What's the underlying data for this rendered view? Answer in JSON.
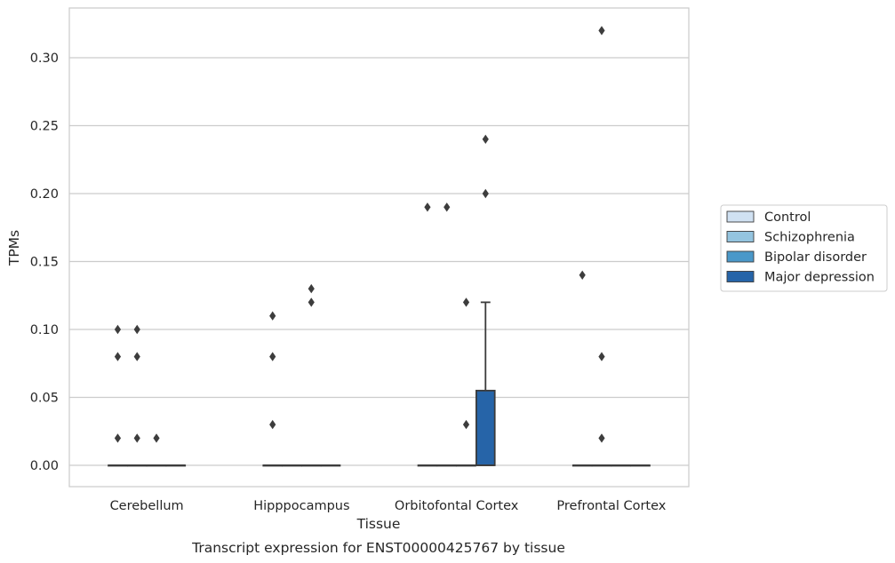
{
  "chart_data": {
    "type": "box",
    "xlabel": "Tissue",
    "ylabel": "TPMs",
    "caption": "Transcript expression for ENST00000425767 by tissue",
    "ylim": [
      -0.016,
      0.337
    ],
    "yticks": [
      0.0,
      0.05,
      0.1,
      0.15,
      0.2,
      0.25,
      0.3
    ],
    "ytick_labels": [
      "0.00",
      "0.05",
      "0.10",
      "0.15",
      "0.20",
      "0.25",
      "0.30"
    ],
    "grid": "horizontal",
    "legend_position": "right",
    "categories": [
      "Cerebellum",
      "Hipppocampus",
      "Orbitofontal Cortex",
      "Prefrontal Cortex"
    ],
    "series": [
      {
        "name": "Control",
        "color": "#d0e1f2",
        "boxes": [
          {
            "category": "Cerebellum",
            "q1": 0,
            "median": 0,
            "q3": 0,
            "whisker_low": 0,
            "whisker_high": 0,
            "outliers": [
              0.1,
              0.08,
              0.02
            ]
          },
          {
            "category": "Hipppocampus",
            "q1": 0,
            "median": 0,
            "q3": 0,
            "whisker_low": 0,
            "whisker_high": 0,
            "outliers": [
              0.11,
              0.08,
              0.03
            ]
          },
          {
            "category": "Orbitofontal Cortex",
            "q1": 0,
            "median": 0,
            "q3": 0,
            "whisker_low": 0,
            "whisker_high": 0,
            "outliers": [
              0.19
            ]
          },
          {
            "category": "Prefrontal Cortex",
            "q1": 0,
            "median": 0,
            "q3": 0,
            "whisker_low": 0,
            "whisker_high": 0,
            "outliers": [
              0.14
            ]
          }
        ]
      },
      {
        "name": "Schizophrenia",
        "color": "#94c4df",
        "boxes": [
          {
            "category": "Cerebellum",
            "q1": 0,
            "median": 0,
            "q3": 0,
            "whisker_low": 0,
            "whisker_high": 0,
            "outliers": [
              0.1,
              0.08,
              0.02
            ]
          },
          {
            "category": "Hipppocampus",
            "q1": 0,
            "median": 0,
            "q3": 0,
            "whisker_low": 0,
            "whisker_high": 0,
            "outliers": []
          },
          {
            "category": "Orbitofontal Cortex",
            "q1": 0,
            "median": 0,
            "q3": 0,
            "whisker_low": 0,
            "whisker_high": 0,
            "outliers": [
              0.19
            ]
          },
          {
            "category": "Prefrontal Cortex",
            "q1": 0,
            "median": 0,
            "q3": 0,
            "whisker_low": 0,
            "whisker_high": 0,
            "outliers": [
              0.32,
              0.08,
              0.02
            ]
          }
        ]
      },
      {
        "name": "Bipolar disorder",
        "color": "#4a98c9",
        "boxes": [
          {
            "category": "Cerebellum",
            "q1": 0,
            "median": 0,
            "q3": 0,
            "whisker_low": 0,
            "whisker_high": 0,
            "outliers": [
              0.02
            ]
          },
          {
            "category": "Hipppocampus",
            "q1": 0,
            "median": 0,
            "q3": 0,
            "whisker_low": 0,
            "whisker_high": 0,
            "outliers": [
              0.13,
              0.12
            ]
          },
          {
            "category": "Orbitofontal Cortex",
            "q1": 0,
            "median": 0,
            "q3": 0,
            "whisker_low": 0,
            "whisker_high": 0,
            "outliers": [
              0.12,
              0.03
            ]
          },
          {
            "category": "Prefrontal Cortex",
            "q1": 0,
            "median": 0,
            "q3": 0,
            "whisker_low": 0,
            "whisker_high": 0,
            "outliers": []
          }
        ]
      },
      {
        "name": "Major depression",
        "color": "#2664a8",
        "boxes": [
          {
            "category": "Cerebellum",
            "q1": 0,
            "median": 0,
            "q3": 0,
            "whisker_low": 0,
            "whisker_high": 0,
            "outliers": []
          },
          {
            "category": "Hipppocampus",
            "q1": 0,
            "median": 0,
            "q3": 0,
            "whisker_low": 0,
            "whisker_high": 0,
            "outliers": []
          },
          {
            "category": "Orbitofontal Cortex",
            "q1": 0,
            "median": 0,
            "q3": 0.055,
            "whisker_low": 0,
            "whisker_high": 0.12,
            "outliers": [
              0.24,
              0.2
            ]
          },
          {
            "category": "Prefrontal Cortex",
            "q1": 0,
            "median": 0,
            "q3": 0,
            "whisker_low": 0,
            "whisker_high": 0,
            "outliers": []
          }
        ]
      }
    ]
  }
}
